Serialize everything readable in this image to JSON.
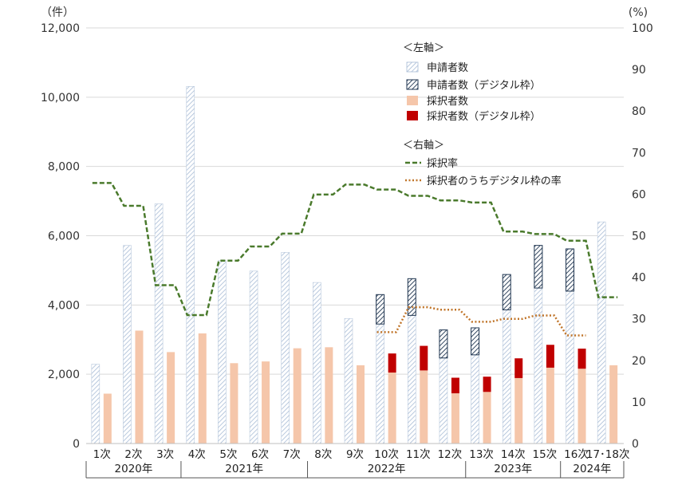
{
  "chart_data": {
    "type": "bar",
    "left_axis_unit": "（件）",
    "right_axis_unit": "(%)",
    "ylim_left": [
      0,
      12000
    ],
    "ylim_right": [
      0,
      100
    ],
    "yticks_left": [
      "0",
      "2,000",
      "4,000",
      "6,000",
      "8,000",
      "10,000",
      "12,000"
    ],
    "yticks_right": [
      "0",
      "10",
      "20",
      "30",
      "40",
      "50",
      "60",
      "70",
      "80",
      "90",
      "100"
    ],
    "categories": [
      "1次",
      "2次",
      "3次",
      "4次",
      "5次",
      "6次",
      "7次",
      "8次",
      "9次",
      "10次",
      "11次",
      "12次",
      "13次",
      "14次",
      "15次",
      "16次",
      "17･18次"
    ],
    "years": [
      {
        "label": "2020年",
        "from": 0,
        "to": 2
      },
      {
        "label": "2021年",
        "from": 3,
        "to": 6
      },
      {
        "label": "2022年",
        "from": 7,
        "to": 11
      },
      {
        "label": "2023年",
        "from": 12,
        "to": 15
      },
      {
        "label": "2024年",
        "from": 15,
        "to": 16
      }
    ],
    "legend_left_header": "＜左軸＞",
    "legend_right_header": "＜右軸＞",
    "series": [
      {
        "name": "申請者数",
        "axis": "left",
        "values": [
          2290,
          5720,
          6920,
          10310,
          5280,
          4980,
          5520,
          4650,
          3610,
          3450,
          3700,
          2470,
          2560,
          3860,
          4490,
          4400,
          6400
        ]
      },
      {
        "name": "申請者数（デジタル枠）",
        "axis": "left",
        "values": [
          0,
          0,
          0,
          0,
          0,
          0,
          0,
          0,
          0,
          850,
          1060,
          810,
          780,
          1020,
          1230,
          1220,
          0
        ]
      },
      {
        "name": "採択者数",
        "axis": "left",
        "values": [
          1440,
          3260,
          2640,
          3180,
          2320,
          2370,
          2750,
          2780,
          2260,
          2050,
          2110,
          1450,
          1490,
          1890,
          2190,
          2160,
          2260
        ]
      },
      {
        "name": "採択者数（デジタル枠）",
        "axis": "left",
        "values": [
          0,
          0,
          0,
          0,
          0,
          0,
          0,
          0,
          0,
          550,
          710,
          450,
          440,
          570,
          660,
          580,
          0
        ]
      },
      {
        "name": "採択率",
        "axis": "right",
        "values": [
          62.7,
          57.2,
          38.1,
          30.9,
          44.0,
          47.4,
          50.5,
          59.9,
          62.3,
          61.1,
          59.6,
          58.5,
          58.0,
          51.0,
          50.4,
          48.8,
          35.2
        ]
      },
      {
        "name": "採択者のうちデジタル枠の率",
        "axis": "right",
        "values": [
          null,
          null,
          null,
          null,
          null,
          null,
          null,
          null,
          null,
          26.8,
          32.8,
          32.2,
          29.3,
          30.0,
          30.8,
          26.0,
          null
        ]
      }
    ],
    "colors": {
      "applicant_hatch": "#b9c9dd",
      "applicant_digital_hatch": "#1f3550",
      "adopted": "#f5c6aa",
      "adopted_digital": "#c00000",
      "rate_line": "#4a7a2c",
      "digital_rate_line": "#c0752a"
    }
  }
}
